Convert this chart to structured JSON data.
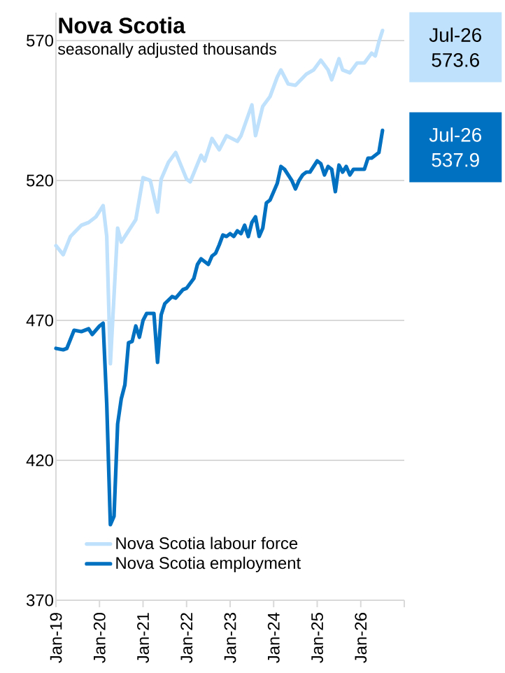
{
  "chart_data": {
    "type": "line",
    "title": "Nova Scotia",
    "subtitle": "seasonally adjusted thousands",
    "xlim": [
      "2019-01",
      "2027-01"
    ],
    "xticks": [
      {
        "value": "2019-01",
        "label": "Jan-19"
      },
      {
        "value": "2020-01",
        "label": "Jan-20"
      },
      {
        "value": "2021-01",
        "label": "Jan-21"
      },
      {
        "value": "2022-01",
        "label": "Jan-22"
      },
      {
        "value": "2023-01",
        "label": "Jan-23"
      },
      {
        "value": "2024-01",
        "label": "Jan-24"
      },
      {
        "value": "2025-01",
        "label": "Jan-25"
      },
      {
        "value": "2026-01",
        "label": "Jan-26"
      },
      {
        "value": "2027-01",
        "label": null
      }
    ],
    "ylim": [
      370,
      580
    ],
    "yticks": [
      370,
      420,
      470,
      520,
      570
    ],
    "grid": "y",
    "legend": "bottom left",
    "marker": "none",
    "line_style": "solid",
    "series": [
      {
        "name": "Nova Scotia labour force",
        "color": "#bfe1fb",
        "x": [
          "2019-01",
          "2019-03",
          "2019-05",
          "2019-08",
          "2019-10",
          "2019-11",
          "2019-12",
          "2020-02",
          "2020-03",
          "2020-04",
          "2020-06",
          "2020-07",
          "2020-11",
          "2021-01",
          "2021-03",
          "2021-05",
          "2021-06",
          "2021-08",
          "2021-10",
          "2022-01",
          "2022-02",
          "2022-05",
          "2022-06",
          "2022-08",
          "2022-10",
          "2022-12",
          "2023-03",
          "2023-04",
          "2023-07",
          "2023-08",
          "2023-10",
          "2023-12",
          "2024-02",
          "2024-03",
          "2024-05",
          "2024-07",
          "2024-10",
          "2024-12",
          "2025-02",
          "2025-04",
          "2025-05",
          "2025-07",
          "2025-08",
          "2025-10",
          "2025-12",
          "2026-02",
          "2026-04",
          "2026-05",
          "2026-06",
          "2026-07"
        ],
        "values": [
          496.7,
          493.5,
          500,
          504,
          505,
          506,
          507,
          511,
          500,
          454.5,
          503,
          498,
          506,
          521,
          520,
          508.7,
          520.5,
          526.5,
          530,
          520.5,
          519.5,
          529,
          527,
          535,
          531,
          536,
          534,
          536,
          547,
          536,
          546.5,
          550,
          557,
          559.5,
          554.5,
          554,
          558,
          559.5,
          563,
          559.5,
          556,
          563.5,
          559.5,
          558.5,
          562,
          562,
          565.5,
          564.5,
          569.5,
          573.6
        ]
      },
      {
        "name": "Nova Scotia employment",
        "color": "#0070c0",
        "x": [
          "2019-01",
          "2019-03",
          "2019-04",
          "2019-06",
          "2019-08",
          "2019-10",
          "2019-11",
          "2020-01",
          "2020-02",
          "2020-03",
          "2020-04",
          "2020-05",
          "2020-06",
          "2020-07",
          "2020-08",
          "2020-09",
          "2020-10",
          "2020-11",
          "2020-12",
          "2021-01",
          "2021-02",
          "2021-04",
          "2021-05",
          "2021-06",
          "2021-07",
          "2021-09",
          "2021-10",
          "2021-12",
          "2022-01",
          "2022-03",
          "2022-04",
          "2022-05",
          "2022-06",
          "2022-07",
          "2022-08",
          "2022-09",
          "2022-10",
          "2022-11",
          "2022-12",
          "2023-01",
          "2023-02",
          "2023-03",
          "2023-04",
          "2023-05",
          "2023-06",
          "2023-07",
          "2023-08",
          "2023-09",
          "2023-10",
          "2023-11",
          "2023-12",
          "2024-01",
          "2024-02",
          "2024-03",
          "2024-04",
          "2024-05",
          "2024-06",
          "2024-07",
          "2024-08",
          "2024-09",
          "2024-10",
          "2024-11",
          "2024-12",
          "2025-01",
          "2025-02",
          "2025-03",
          "2025-04",
          "2025-05",
          "2025-06",
          "2025-07",
          "2025-08",
          "2025-09",
          "2025-10",
          "2025-11",
          "2025-12",
          "2026-01",
          "2026-02",
          "2026-03",
          "2026-04",
          "2026-05",
          "2026-06",
          "2026-07"
        ],
        "values": [
          460,
          459.5,
          460,
          466.5,
          466,
          467,
          465,
          468,
          469,
          440,
          397,
          400,
          433,
          442,
          447,
          462,
          462.5,
          468,
          464,
          470,
          472.5,
          472.5,
          455,
          472,
          476,
          478.5,
          478,
          481,
          481.5,
          485,
          490,
          492,
          491,
          490,
          493,
          494,
          497,
          500.5,
          500,
          501,
          500,
          502,
          501,
          504,
          500,
          505,
          507,
          500,
          503,
          512,
          513,
          516,
          519,
          525,
          524,
          522,
          520,
          517,
          520,
          522,
          523,
          523,
          525,
          527,
          526,
          522,
          525,
          524,
          516,
          525.5,
          523,
          525,
          522,
          524,
          524,
          524,
          524,
          528,
          528,
          529,
          530,
          537.9
        ]
      }
    ],
    "annotations": [
      {
        "text": "Jul-26 573.6",
        "x": "2026-07",
        "y": 573.6
      },
      {
        "text": "Jul-26 537.9",
        "x": "2026-07",
        "y": 537.9
      }
    ]
  }
}
